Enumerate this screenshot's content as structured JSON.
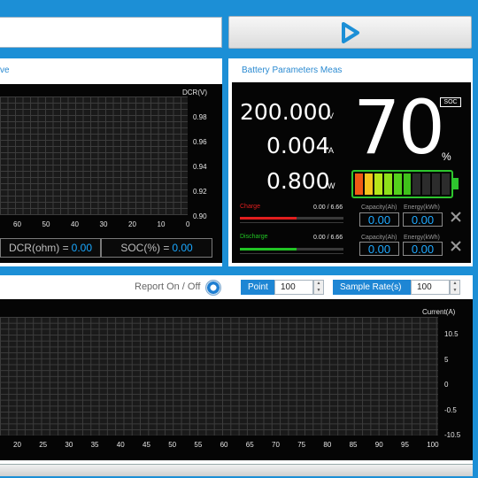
{
  "top": {
    "play_icon": "play-triangle-icon"
  },
  "dcr": {
    "title": "ve",
    "y_axis_label": "DCR(V)",
    "y_ticks": [
      "0.98",
      "0.96",
      "0.94",
      "0.92",
      "0.90"
    ],
    "x_ticks": [
      "60",
      "50",
      "40",
      "30",
      "20",
      "10",
      "0"
    ],
    "dcr_label": "DCR(ohm) =",
    "dcr_value": "0.00",
    "soc_label": "SOC(%) =",
    "soc_value": "0.00"
  },
  "battery": {
    "title": "Battery Parameters Meas",
    "voltage": "200.000",
    "voltage_unit": "V",
    "current": "0.004",
    "current_unit": "A",
    "power": "0.800",
    "power_unit": "W",
    "soc_tag": "SOC",
    "soc": "70",
    "soc_unit": "%",
    "cell_colors": [
      "#f05a14",
      "#f6c31d",
      "#b7e61a",
      "#8ee01a",
      "#55d11c",
      "#3fc11a",
      "#2c2c2c",
      "#2c2c2c",
      "#2c2c2c",
      "#2c2c2c"
    ],
    "charge": {
      "label": "Charge",
      "value": "0.00 / 6.66",
      "progress": 0.55,
      "color": "#e21e1e",
      "cap_label": "Capacity(Ah)",
      "cap_value": "0.00",
      "energy_label": "Energy(kWh)",
      "energy_value": "0.00"
    },
    "discharge": {
      "label": "Discharge",
      "value": "0.00 / 6.66",
      "progress": 0.55,
      "color": "#21c424",
      "cap_label": "Capacity(Ah)",
      "cap_value": "0.00",
      "energy_label": "Energy(kWh)",
      "energy_value": "0.00"
    }
  },
  "current_chart": {
    "report_label": "Report On / Off",
    "point_label": "Point",
    "point_value": "100",
    "rate_label": "Sample Rate(s)",
    "rate_value": "100",
    "y_axis_label": "Current(A)",
    "y_ticks": [
      "10.5",
      "5",
      "0",
      "-0.5",
      "-10.5"
    ],
    "x_ticks": [
      "20",
      "25",
      "30",
      "35",
      "40",
      "45",
      "50",
      "55",
      "60",
      "65",
      "70",
      "75",
      "80",
      "85",
      "90",
      "95",
      "100"
    ]
  }
}
